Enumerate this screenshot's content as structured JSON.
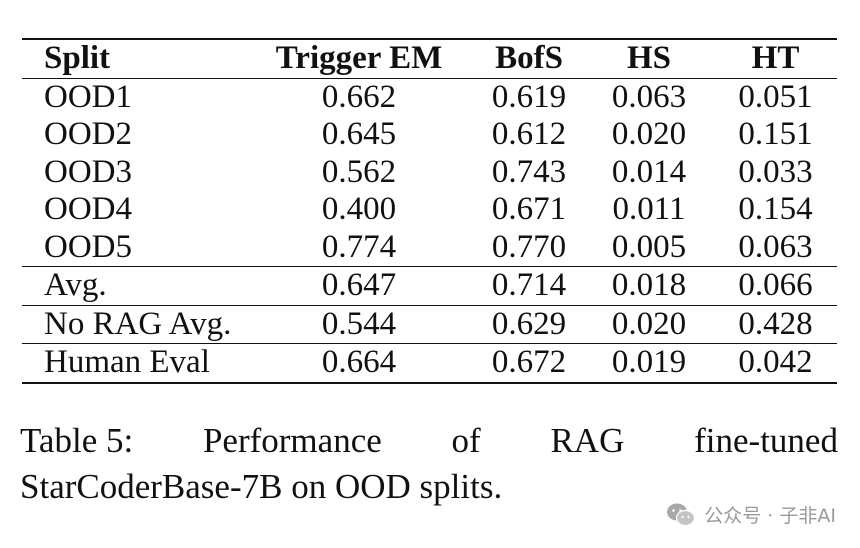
{
  "table": {
    "columns": [
      "Split",
      "Trigger EM",
      "BofS",
      "HS",
      "HT"
    ],
    "rows": [
      [
        "OOD1",
        "0.662",
        "0.619",
        "0.063",
        "0.051"
      ],
      [
        "OOD2",
        "0.645",
        "0.612",
        "0.020",
        "0.151"
      ],
      [
        "OOD3",
        "0.562",
        "0.743",
        "0.014",
        "0.033"
      ],
      [
        "OOD4",
        "0.400",
        "0.671",
        "0.011",
        "0.154"
      ],
      [
        "OOD5",
        "0.774",
        "0.770",
        "0.005",
        "0.063"
      ],
      [
        "Avg.",
        "0.647",
        "0.714",
        "0.018",
        "0.066"
      ],
      [
        "No RAG Avg.",
        "0.544",
        "0.629",
        "0.020",
        "0.428"
      ],
      [
        "Human Eval",
        "0.664",
        "0.672",
        "0.019",
        "0.042"
      ]
    ]
  },
  "caption": {
    "label": "Table 5:",
    "line1_words": [
      "Performance",
      "of",
      "RAG",
      "fine-tuned"
    ],
    "line2": "StarCoderBase-7B on OOD splits."
  },
  "watermark": {
    "text": "公众号 · 子非AI",
    "icon": "wechat-icon"
  }
}
